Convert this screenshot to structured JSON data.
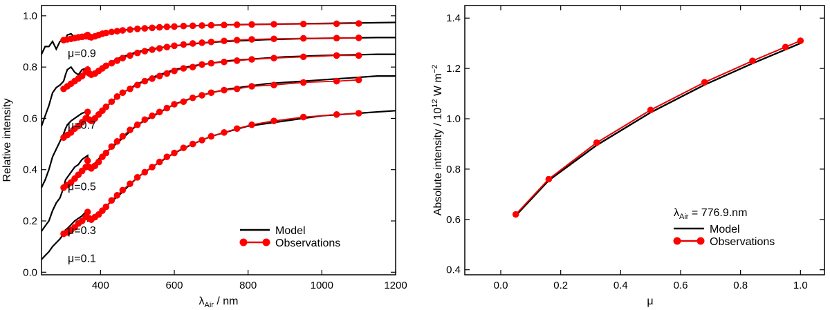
{
  "chart_data": [
    {
      "type": "line",
      "title": "",
      "xlabel": "λ",
      "xlabel_sub": "Air",
      "xlabel_unit": " / nm",
      "ylabel": "Relative intensity",
      "xlim": [
        240,
        1200
      ],
      "ylim": [
        -0.01,
        1.04
      ],
      "xticks": [
        400,
        600,
        800,
        1000,
        1200
      ],
      "yticks": [
        0.0,
        0.2,
        0.4,
        0.6,
        0.8,
        1.0
      ],
      "xtick_labels": [
        "400",
        "600",
        "800",
        "1000",
        "1200"
      ],
      "ytick_labels": [
        "0.0",
        "0.2",
        "0.4",
        "0.6",
        "0.8",
        "1.0"
      ],
      "legend": {
        "location": "bottom-right",
        "model_label": "Model",
        "obs_label": "Observations"
      },
      "obs_x": [
        300,
        310,
        320,
        330,
        340,
        350,
        360,
        365,
        370,
        375,
        385,
        395,
        405,
        415,
        430,
        445,
        460,
        480,
        500,
        520,
        540,
        560,
        580,
        600,
        625,
        650,
        675,
        700,
        735,
        770,
        810,
        870,
        950,
        1040,
        1100
      ],
      "model_x": [
        240,
        250,
        260,
        270,
        280,
        290,
        300,
        305,
        310,
        320,
        330,
        340,
        350,
        360,
        365,
        366,
        375,
        385,
        400,
        450,
        500,
        550,
        600,
        650,
        700,
        750,
        800,
        850,
        900,
        950,
        1000,
        1050,
        1100,
        1150,
        1200
      ],
      "series": [
        {
          "name": "mu=0.1",
          "label": "μ=0.1",
          "obs_y": [
            0.15,
            0.155,
            0.165,
            0.175,
            0.19,
            0.2,
            0.215,
            0.235,
            0.21,
            0.205,
            0.215,
            0.225,
            0.24,
            0.255,
            0.28,
            0.3,
            0.32,
            0.345,
            0.37,
            0.39,
            0.41,
            0.43,
            0.45,
            0.465,
            0.485,
            0.5,
            0.515,
            0.53,
            0.545,
            0.56,
            0.575,
            0.59,
            0.605,
            0.615,
            0.62
          ],
          "model_y": [
            0.05,
            0.065,
            0.08,
            0.1,
            0.115,
            0.13,
            0.15,
            0.165,
            0.17,
            0.185,
            0.2,
            0.21,
            0.22,
            0.235,
            0.24,
            0.2,
            0.205,
            0.215,
            0.24,
            0.3,
            0.37,
            0.42,
            0.465,
            0.5,
            0.53,
            0.55,
            0.57,
            0.58,
            0.59,
            0.6,
            0.61,
            0.615,
            0.62,
            0.625,
            0.63
          ]
        },
        {
          "name": "mu=0.3",
          "label": "μ=0.3",
          "obs_y": [
            0.33,
            0.34,
            0.35,
            0.365,
            0.38,
            0.395,
            0.41,
            0.435,
            0.41,
            0.405,
            0.415,
            0.43,
            0.45,
            0.465,
            0.49,
            0.51,
            0.53,
            0.555,
            0.575,
            0.595,
            0.61,
            0.625,
            0.64,
            0.655,
            0.665,
            0.68,
            0.69,
            0.7,
            0.71,
            0.715,
            0.725,
            0.73,
            0.74,
            0.745,
            0.75
          ],
          "model_y": [
            0.16,
            0.18,
            0.2,
            0.24,
            0.27,
            0.29,
            0.33,
            0.36,
            0.37,
            0.39,
            0.41,
            0.42,
            0.44,
            0.45,
            0.455,
            0.42,
            0.415,
            0.425,
            0.45,
            0.51,
            0.575,
            0.615,
            0.655,
            0.68,
            0.7,
            0.715,
            0.725,
            0.735,
            0.74,
            0.745,
            0.75,
            0.755,
            0.76,
            0.765,
            0.765
          ]
        },
        {
          "name": "mu=0.5",
          "label": "μ=0.5",
          "obs_y": [
            0.525,
            0.535,
            0.545,
            0.56,
            0.57,
            0.585,
            0.6,
            0.625,
            0.595,
            0.59,
            0.6,
            0.615,
            0.63,
            0.645,
            0.665,
            0.685,
            0.7,
            0.715,
            0.73,
            0.745,
            0.755,
            0.765,
            0.775,
            0.785,
            0.795,
            0.8,
            0.81,
            0.815,
            0.82,
            0.825,
            0.83,
            0.835,
            0.84,
            0.845,
            0.845
          ],
          "model_y": [
            0.33,
            0.36,
            0.4,
            0.45,
            0.48,
            0.51,
            0.54,
            0.56,
            0.575,
            0.59,
            0.6,
            0.61,
            0.62,
            0.625,
            0.63,
            0.6,
            0.595,
            0.605,
            0.625,
            0.69,
            0.735,
            0.765,
            0.79,
            0.805,
            0.815,
            0.825,
            0.83,
            0.835,
            0.84,
            0.842,
            0.845,
            0.847,
            0.848,
            0.85,
            0.85
          ]
        },
        {
          "name": "mu=0.7",
          "label": "μ=0.7",
          "obs_y": [
            0.715,
            0.725,
            0.735,
            0.745,
            0.755,
            0.765,
            0.78,
            0.79,
            0.775,
            0.77,
            0.775,
            0.785,
            0.795,
            0.805,
            0.815,
            0.825,
            0.835,
            0.845,
            0.855,
            0.862,
            0.868,
            0.873,
            0.878,
            0.883,
            0.888,
            0.892,
            0.895,
            0.898,
            0.902,
            0.905,
            0.908,
            0.91,
            0.912,
            0.913,
            0.914
          ],
          "model_y": [
            0.57,
            0.61,
            0.65,
            0.7,
            0.72,
            0.73,
            0.745,
            0.77,
            0.79,
            0.8,
            0.78,
            0.77,
            0.79,
            0.795,
            0.8,
            0.77,
            0.77,
            0.78,
            0.795,
            0.835,
            0.86,
            0.873,
            0.883,
            0.89,
            0.897,
            0.901,
            0.904,
            0.907,
            0.909,
            0.911,
            0.912,
            0.913,
            0.914,
            0.915,
            0.915
          ]
        },
        {
          "name": "mu=0.9",
          "label": "μ=0.9",
          "obs_y": [
            0.905,
            0.908,
            0.91,
            0.913,
            0.916,
            0.918,
            0.92,
            0.925,
            0.918,
            0.916,
            0.92,
            0.925,
            0.93,
            0.933,
            0.937,
            0.94,
            0.943,
            0.946,
            0.949,
            0.951,
            0.953,
            0.955,
            0.957,
            0.958,
            0.96,
            0.961,
            0.962,
            0.963,
            0.964,
            0.965,
            0.966,
            0.967,
            0.968,
            0.969,
            0.97
          ],
          "model_y": [
            0.85,
            0.88,
            0.88,
            0.9,
            0.87,
            0.9,
            0.905,
            0.91,
            0.925,
            0.93,
            0.915,
            0.92,
            0.92,
            0.925,
            0.93,
            0.92,
            0.918,
            0.922,
            0.93,
            0.942,
            0.95,
            0.955,
            0.958,
            0.961,
            0.963,
            0.965,
            0.966,
            0.967,
            0.968,
            0.969,
            0.97,
            0.971,
            0.972,
            0.973,
            0.974
          ]
        }
      ]
    },
    {
      "type": "line",
      "title": "",
      "xlabel": "μ",
      "ylabel": "Absolute intensity / 10",
      "ylabel_sup": "12",
      "ylabel_unit": " W m",
      "ylabel_unit_sup": "−2",
      "xlim": [
        -0.12,
        1.08
      ],
      "ylim": [
        0.38,
        1.45
      ],
      "xticks": [
        0.0,
        0.2,
        0.4,
        0.6,
        0.8,
        1.0
      ],
      "yticks": [
        0.4,
        0.6,
        0.8,
        1.0,
        1.2,
        1.4
      ],
      "xtick_labels": [
        "0.0",
        "0.2",
        "0.4",
        "0.6",
        "0.8",
        "1.0"
      ],
      "ytick_labels": [
        "0.4",
        "0.6",
        "0.8",
        "1.0",
        "1.2",
        "1.4"
      ],
      "annotation": {
        "prefix": "λ",
        "sub": "Air",
        "text": " = 776.9.nm"
      },
      "legend": {
        "location": "bottom-right",
        "model_label": "Model",
        "obs_label": "Observations"
      },
      "series": [
        {
          "name": "Model",
          "x": [
            0.05,
            0.16,
            0.32,
            0.5,
            0.68,
            0.84,
            0.95,
            1.0
          ],
          "y": [
            0.615,
            0.755,
            0.895,
            1.025,
            1.135,
            1.22,
            1.275,
            1.3
          ]
        },
        {
          "name": "Observations",
          "x": [
            0.05,
            0.16,
            0.32,
            0.5,
            0.68,
            0.84,
            0.95,
            1.0
          ],
          "y": [
            0.62,
            0.76,
            0.905,
            1.035,
            1.145,
            1.23,
            1.285,
            1.31
          ]
        }
      ]
    }
  ]
}
